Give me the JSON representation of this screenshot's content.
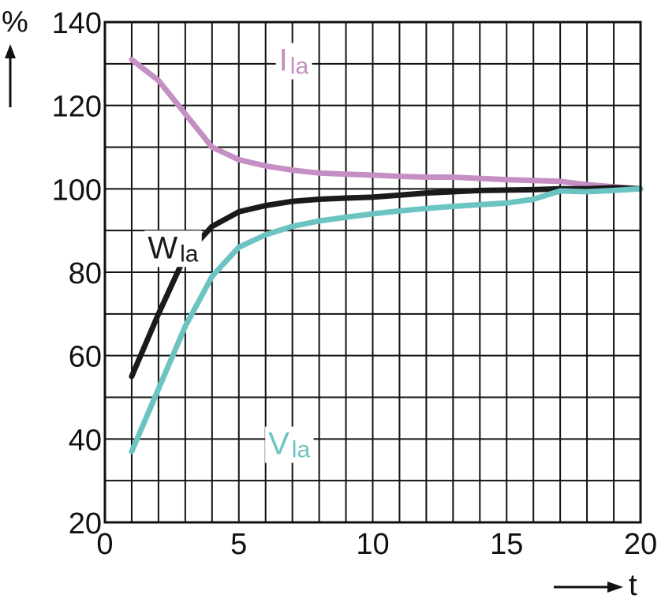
{
  "chart_data": {
    "type": "line",
    "title": "",
    "xlabel": "t",
    "ylabel": "%",
    "xlim": [
      0,
      20
    ],
    "ylim": [
      20,
      140
    ],
    "x_ticks": [
      0,
      5,
      10,
      15,
      20
    ],
    "y_ticks": [
      20,
      40,
      60,
      80,
      100,
      120,
      140
    ],
    "grid": true,
    "series": [
      {
        "name": "Ila",
        "color": "#c58fc4",
        "x": [
          1,
          2,
          3,
          4,
          5,
          6,
          7,
          8,
          9,
          10,
          11,
          12,
          13,
          14,
          15,
          16,
          17,
          18,
          19,
          20
        ],
        "y": [
          131,
          126,
          118,
          110,
          107,
          105.5,
          104.5,
          103.8,
          103.5,
          103.3,
          103,
          102.8,
          102.8,
          102.5,
          102.2,
          102,
          101.8,
          101,
          100.5,
          100
        ]
      },
      {
        "name": "Wla",
        "color": "#1a1a1a",
        "x": [
          1,
          2,
          3,
          4,
          5,
          6,
          7,
          8,
          9,
          10,
          11,
          12,
          13,
          14,
          15,
          16,
          17,
          18,
          19,
          20
        ],
        "y": [
          55,
          70,
          84,
          91,
          94.5,
          96,
          97,
          97.5,
          97.8,
          98,
          98.5,
          99,
          99.3,
          99.6,
          99.7,
          99.8,
          100,
          100,
          100.3,
          100
        ]
      },
      {
        "name": "Vla",
        "color": "#6cc4c2",
        "x": [
          1,
          2,
          3,
          4,
          5,
          6,
          7,
          8,
          9,
          10,
          11,
          12,
          13,
          14,
          15,
          16,
          17,
          18,
          19,
          20
        ],
        "y": [
          37,
          52,
          67,
          79,
          86,
          89,
          91,
          92.3,
          93.2,
          94,
          94.7,
          95.3,
          95.8,
          96.2,
          96.6,
          97.5,
          99.5,
          99.3,
          99.6,
          100
        ]
      }
    ],
    "series_labels": [
      {
        "name": "Ila",
        "main": "I",
        "sub": "la",
        "anchor_x": 6.5,
        "anchor_y": 131
      },
      {
        "name": "Wla",
        "main": "W",
        "sub": "la",
        "anchor_x": 1.6,
        "anchor_y": 86
      },
      {
        "name": "Vla",
        "main": "V",
        "sub": "la",
        "anchor_x": 6.1,
        "anchor_y": 39
      }
    ]
  }
}
